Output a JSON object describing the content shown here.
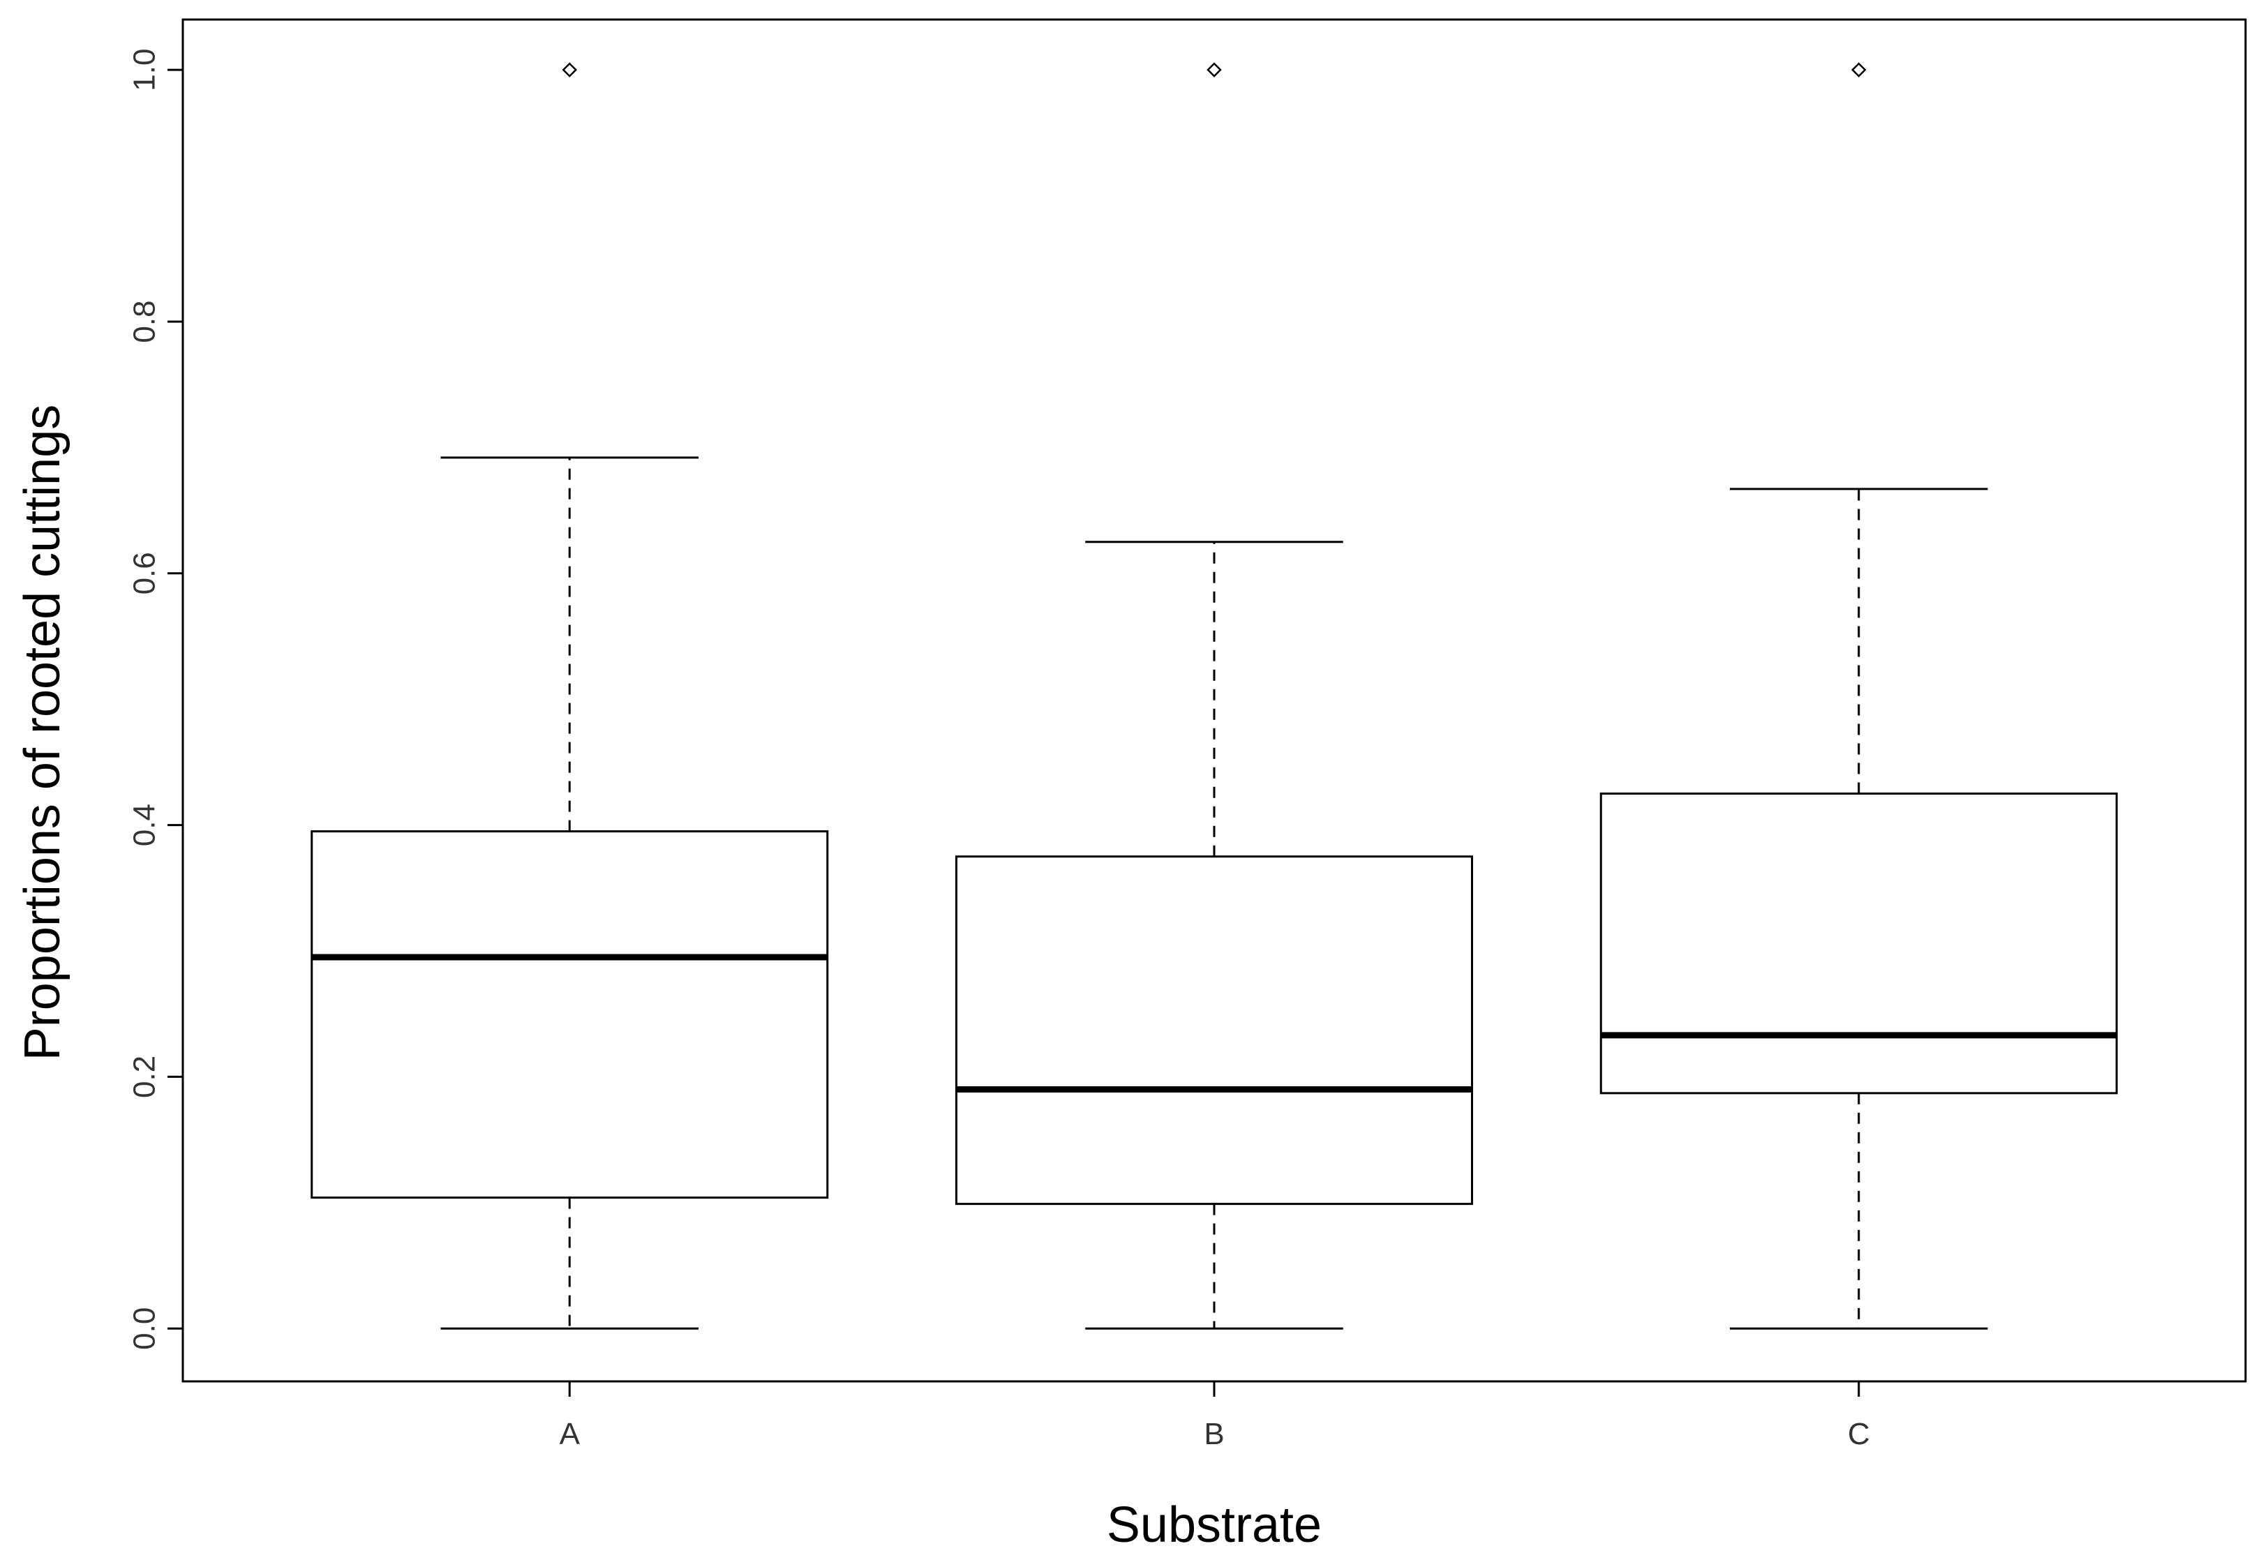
{
  "chart_data": {
    "type": "boxplot",
    "title": "",
    "xlabel": "Substrate",
    "ylabel": "Proportions of rooted cuttings",
    "categories": [
      "A",
      "B",
      "C"
    ],
    "ylim": [
      -0.042,
      1.04
    ],
    "yticks": [
      0.0,
      0.2,
      0.4,
      0.6,
      0.8,
      1.0
    ],
    "ytick_labels": [
      "0.0",
      "0.2",
      "0.4",
      "0.6",
      "0.8",
      "1.0"
    ],
    "grid": false,
    "legend": "none",
    "boxes": [
      {
        "category": "A",
        "whisker_low": 0.0,
        "q1": 0.104,
        "median": 0.295,
        "q3": 0.395,
        "whisker_high": 0.692,
        "outliers": [
          1.0
        ]
      },
      {
        "category": "B",
        "whisker_low": 0.0,
        "q1": 0.099,
        "median": 0.19,
        "q3": 0.375,
        "whisker_high": 0.625,
        "outliers": [
          1.0
        ]
      },
      {
        "category": "C",
        "whisker_low": 0.0,
        "q1": 0.187,
        "median": 0.233,
        "q3": 0.425,
        "whisker_high": 0.667,
        "outliers": [
          1.0
        ]
      }
    ],
    "colors": {
      "box_fill": "#ffffff",
      "stroke": "#000000",
      "text": "#333333"
    }
  }
}
